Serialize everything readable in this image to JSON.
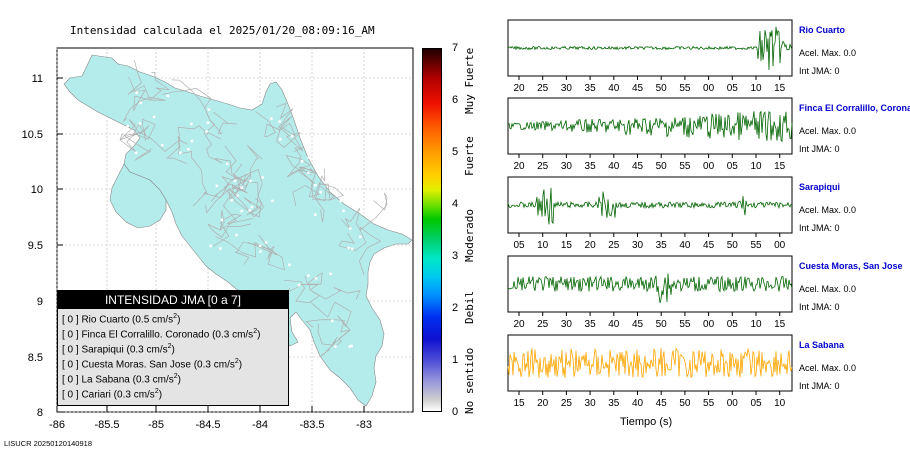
{
  "map": {
    "title": "Intensidad calculada el 2025/01/20_08:09:16_AM",
    "x_ticks": [
      "-86",
      "-85.5",
      "-85",
      "-84.5",
      "-84",
      "-83.5",
      "-83"
    ],
    "y_ticks": [
      "11",
      "10.5",
      "10",
      "9.5",
      "9",
      "8.5",
      "8"
    ],
    "land_color": "#b4ecec",
    "footer": "LISUCR 20250120140918"
  },
  "legend": {
    "header": "INTENSIDAD JMA [0 a 7]",
    "rows": [
      {
        "prefix": "[ 0 ]",
        "text": "Rio Cuarto (0.5 cm/s",
        "sup": "2",
        "suffix": ")"
      },
      {
        "prefix": "[ 0 ]",
        "text": "Finca El Corralillo. Coronado (0.3 cm/s",
        "sup": "2",
        "suffix": ")"
      },
      {
        "prefix": "[ 0 ]",
        "text": "Sarapiqui (0.3 cm/s",
        "sup": "2",
        "suffix": ")"
      },
      {
        "prefix": "[ 0 ]",
        "text": "Cuesta Moras. San Jose (0.3 cm/s",
        "sup": "2",
        "suffix": ")"
      },
      {
        "prefix": "[ 0 ]",
        "text": "La Sabana (0.3 cm/s",
        "sup": "2",
        "suffix": ")"
      },
      {
        "prefix": "[ 0 ]",
        "text": "Cariari (0.3 cm/s",
        "sup": "2",
        "suffix": ")"
      }
    ]
  },
  "colorbar": {
    "ticks": [
      "7",
      "6",
      "5",
      "4",
      "3",
      "2",
      "1",
      "0"
    ],
    "labels": [
      "Muy Fuerte",
      "Fuerte",
      "Moderado",
      "Debil",
      "No sentido"
    ]
  },
  "stations": [
    {
      "name": "Rio Cuarto",
      "accel": "Acel. Max. 0.0",
      "jma": "Int JMA: 0",
      "ticks": [
        "20",
        "25",
        "30",
        "35",
        "40",
        "45",
        "50",
        "55",
        "00",
        "05",
        "10",
        "15"
      ],
      "color": "#006400"
    },
    {
      "name": "Finca El Corralillo, Coronado",
      "accel": "Acel. Max. 0.0",
      "jma": "Int JMA: 0",
      "ticks": [
        "20",
        "25",
        "30",
        "35",
        "40",
        "45",
        "50",
        "55",
        "00",
        "05",
        "10",
        "15"
      ],
      "color": "#006400"
    },
    {
      "name": "Sarapiqui",
      "accel": "Acel. Max. 0.0",
      "jma": "Int JMA: 0",
      "ticks": [
        "05",
        "10",
        "15",
        "20",
        "25",
        "30",
        "35",
        "40",
        "45",
        "50",
        "55",
        "00"
      ],
      "color": "#006400"
    },
    {
      "name": "Cuesta Moras, San Jose",
      "accel": "Acel. Max. 0.0",
      "jma": "Int JMA: 0",
      "ticks": [
        "20",
        "25",
        "30",
        "35",
        "40",
        "45",
        "50",
        "55",
        "00",
        "05",
        "10",
        "15"
      ],
      "color": "#006400"
    },
    {
      "name": "La Sabana",
      "accel": "Acel. Max. 0.0",
      "jma": "Int JMA: 0",
      "ticks": [
        "15",
        "20",
        "25",
        "30",
        "35",
        "40",
        "45",
        "50",
        "55",
        "00",
        "05",
        "10"
      ],
      "color": "#ffa500"
    }
  ],
  "traces": {
    "xlabel": "Tiempo (s)"
  }
}
